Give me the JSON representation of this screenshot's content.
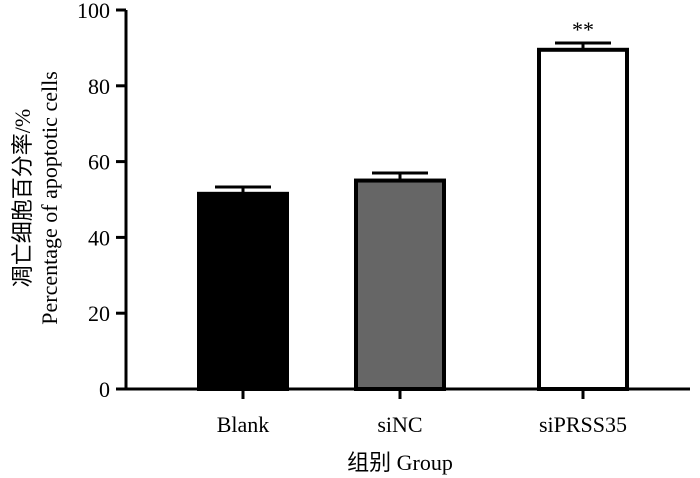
{
  "chart_data": {
    "type": "bar",
    "categories": [
      "Blank",
      "siNC",
      "siPRSS35"
    ],
    "values": [
      51.5,
      55.0,
      89.5
    ],
    "errors": [
      1.8,
      2.0,
      1.8
    ],
    "bar_colors": [
      "#000000",
      "#666666",
      "#ffffff"
    ],
    "significance": [
      "",
      "",
      "**"
    ],
    "ylabel_cn": "凋亡细胞百分率/%",
    "ylabel_en": "Percentage of apoptotic cells",
    "xlabel": "组别 Group",
    "ylim": [
      0,
      100
    ],
    "yticks": [
      "0",
      "20",
      "40",
      "60",
      "80",
      "100"
    ]
  }
}
